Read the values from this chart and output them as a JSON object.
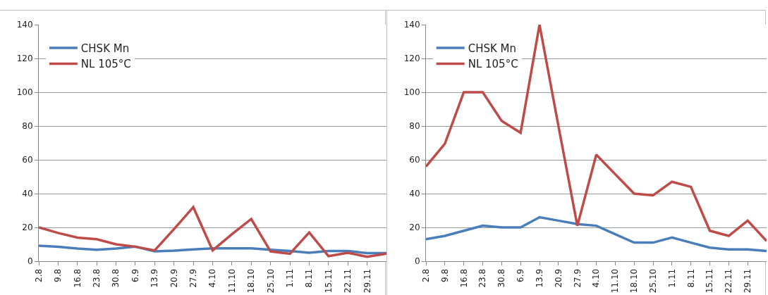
{
  "chart_data": [
    {
      "type": "line",
      "categories": [
        "2.8",
        "9.8",
        "16.8",
        "23.8",
        "30.8",
        "6.9",
        "13.9",
        "20.9",
        "27.9",
        "4.10",
        "11.10",
        "18.10",
        "25.10",
        "1.11",
        "8.11",
        "15.11",
        "22.11",
        "29.11",
        null
      ],
      "series": [
        {
          "name": "CHSK Mn",
          "color": "#4a7ebb",
          "values": [
            9.2,
            8.5,
            7.5,
            6.8,
            7.5,
            8.6,
            5.8,
            6.2,
            7,
            7.6,
            7.6,
            7.6,
            6.8,
            6,
            5,
            6,
            6,
            4.8,
            4.8
          ]
        },
        {
          "name": "NL 105°C",
          "color": "#be4b48",
          "values": [
            20,
            16.7,
            14,
            13,
            10,
            8.6,
            6.4,
            19,
            32,
            6.4,
            16,
            25,
            5.8,
            4.4,
            17,
            3,
            5,
            2.6,
            4.5
          ]
        }
      ],
      "ylim": [
        0,
        140
      ],
      "yticks": [
        0,
        20,
        40,
        60,
        80,
        100,
        120,
        140
      ],
      "grid": "y",
      "legend": "top left",
      "marker": "none",
      "line_style": "solid"
    },
    {
      "type": "line",
      "categories": [
        "2.8",
        "9.8",
        "16.8",
        "23.8",
        "30.8",
        "6.9",
        "13.9",
        "20.9",
        "27.9",
        "4.10",
        "11.10",
        "18.10",
        "25.10",
        "1.11",
        "8.11",
        "15.11",
        "22.11",
        "29.11",
        null
      ],
      "series": [
        {
          "name": "CHSK Mn",
          "color": "#4a7ebb",
          "values": [
            13,
            15,
            18,
            21,
            20,
            20,
            26,
            24,
            22,
            21,
            16,
            11,
            11,
            14,
            11,
            8,
            7,
            7,
            6
          ]
        },
        {
          "name": "NL 105°C",
          "color": "#be4b48",
          "values": [
            56,
            69.5,
            100,
            100,
            83,
            76,
            140,
            80,
            21,
            63,
            51.5,
            40,
            39,
            47,
            44,
            18,
            15,
            24,
            12
          ]
        }
      ],
      "ylim": [
        0,
        140
      ],
      "yticks": [
        0,
        20,
        40,
        60,
        80,
        100,
        120,
        140
      ],
      "grid": "y",
      "legend": "top left",
      "marker": "none",
      "line_style": "solid"
    }
  ]
}
